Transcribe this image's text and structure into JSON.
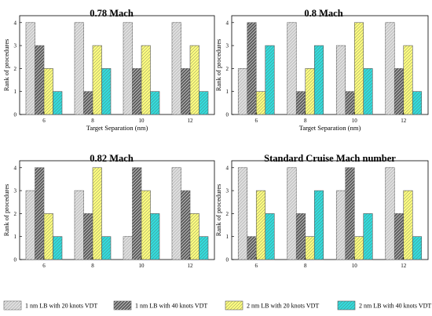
{
  "legend": [
    {
      "label": "1 nm LB with 20 knots VDT",
      "color": "#c8c8c8",
      "hatch": "light"
    },
    {
      "label": "1 nm LB with 40 knots VDT",
      "color": "#5a5a5a",
      "hatch": "light"
    },
    {
      "label": "2 nm LB with 20 knots VDT",
      "color": "#ffff80",
      "hatch": "dark"
    },
    {
      "label": "2 nm LB with 40 knots VDT",
      "color": "#33dddd",
      "hatch": "dark"
    }
  ],
  "chart_data": [
    {
      "type": "bar",
      "title": "0.78 Mach",
      "xlabel": "Target Separation (nm)",
      "ylabel": "Rank of procedures",
      "categories": [
        "6",
        "8",
        "10",
        "12"
      ],
      "ylim": [
        0,
        4.3
      ],
      "yticks": [
        0,
        1,
        2,
        3,
        4
      ],
      "series": [
        {
          "name": "1 nm LB with 20 knots VDT",
          "values": [
            4,
            4,
            4,
            4
          ]
        },
        {
          "name": "1 nm LB with 40 knots VDT",
          "values": [
            3,
            1,
            2,
            2
          ]
        },
        {
          "name": "2 nm LB with 20 knots VDT",
          "values": [
            2,
            3,
            3,
            3
          ]
        },
        {
          "name": "2 nm LB with 40 knots VDT",
          "values": [
            1,
            2,
            1,
            1
          ]
        }
      ]
    },
    {
      "type": "bar",
      "title": "0.8 Mach",
      "xlabel": "Target Separation (nm)",
      "ylabel": "Rank of procedures",
      "categories": [
        "6",
        "8",
        "10",
        "12"
      ],
      "ylim": [
        0,
        4.3
      ],
      "yticks": [
        0,
        1,
        2,
        3,
        4
      ],
      "series": [
        {
          "name": "1 nm LB with 20 knots VDT",
          "values": [
            2,
            4,
            3,
            4
          ]
        },
        {
          "name": "1 nm LB with 40 knots VDT",
          "values": [
            4,
            1,
            1,
            2
          ]
        },
        {
          "name": "2 nm LB with 20 knots VDT",
          "values": [
            1,
            2,
            4,
            3
          ]
        },
        {
          "name": "2 nm LB with 40 knots VDT",
          "values": [
            3,
            3,
            2,
            1
          ]
        }
      ]
    },
    {
      "type": "bar",
      "title": "0.82 Mach",
      "xlabel": "",
      "ylabel": "Rank of procedures",
      "categories": [
        "6",
        "8",
        "10",
        "12"
      ],
      "ylim": [
        0,
        4.3
      ],
      "yticks": [
        0,
        1,
        2,
        3,
        4
      ],
      "series": [
        {
          "name": "1 nm LB with 20 knots VDT",
          "values": [
            3,
            3,
            1,
            4
          ]
        },
        {
          "name": "1 nm LB with 40 knots VDT",
          "values": [
            4,
            2,
            4,
            3
          ]
        },
        {
          "name": "2 nm LB with 20 knots VDT",
          "values": [
            2,
            4,
            3,
            2
          ]
        },
        {
          "name": "2 nm LB with 40 knots VDT",
          "values": [
            1,
            1,
            2,
            1
          ]
        }
      ]
    },
    {
      "type": "bar",
      "title": "Standard Cruise Mach number",
      "xlabel": "",
      "ylabel": "Rank of procedures",
      "categories": [
        "6",
        "8",
        "10",
        "12"
      ],
      "ylim": [
        0,
        4.3
      ],
      "yticks": [
        0,
        1,
        2,
        3,
        4
      ],
      "series": [
        {
          "name": "1 nm LB with 20 knots VDT",
          "values": [
            4,
            4,
            3,
            4
          ]
        },
        {
          "name": "1 nm LB with 40 knots VDT",
          "values": [
            1,
            2,
            4,
            2
          ]
        },
        {
          "name": "2 nm LB with 20 knots VDT",
          "values": [
            3,
            1,
            1,
            3
          ]
        },
        {
          "name": "2 nm LB with 40 knots VDT",
          "values": [
            2,
            3,
            2,
            1
          ]
        }
      ]
    }
  ]
}
